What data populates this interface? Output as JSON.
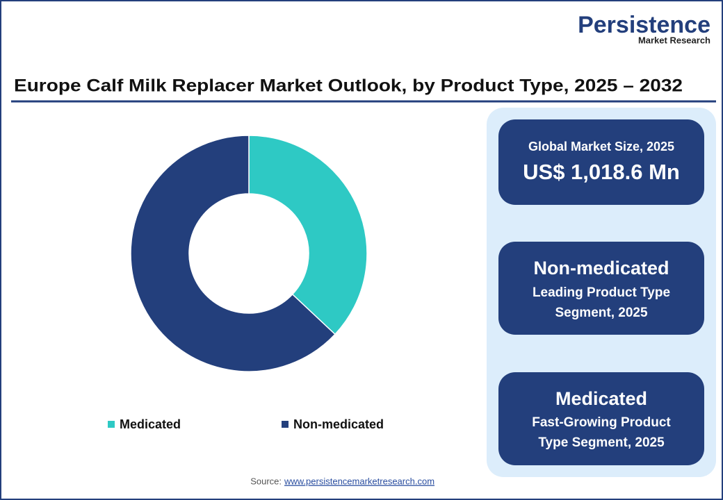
{
  "logo": {
    "name": "Persistence",
    "tagline": "Market Research"
  },
  "chart_data": {
    "type": "donut",
    "title": "Europe Calf Milk Replacer Market Outlook, by Product Type, 2025 – 2032",
    "categories": [
      "Medicated",
      "Non-medicated"
    ],
    "values": [
      37,
      63
    ],
    "colors": [
      "#2ec9c4",
      "#233f7c"
    ],
    "legend": "bottom"
  },
  "cards": [
    {
      "lines": [
        "Global Market Size, 2025",
        "US$ 1,018.6 Mn"
      ]
    },
    {
      "lines": [
        "Non-medicated",
        "Leading Product Type",
        "Segment, 2025"
      ]
    },
    {
      "lines": [
        "Medicated",
        "Fast-Growing Product",
        "Type Segment, 2025"
      ]
    }
  ],
  "source": {
    "label": "Source:",
    "url": "www.persistencemarketresearch.com"
  }
}
